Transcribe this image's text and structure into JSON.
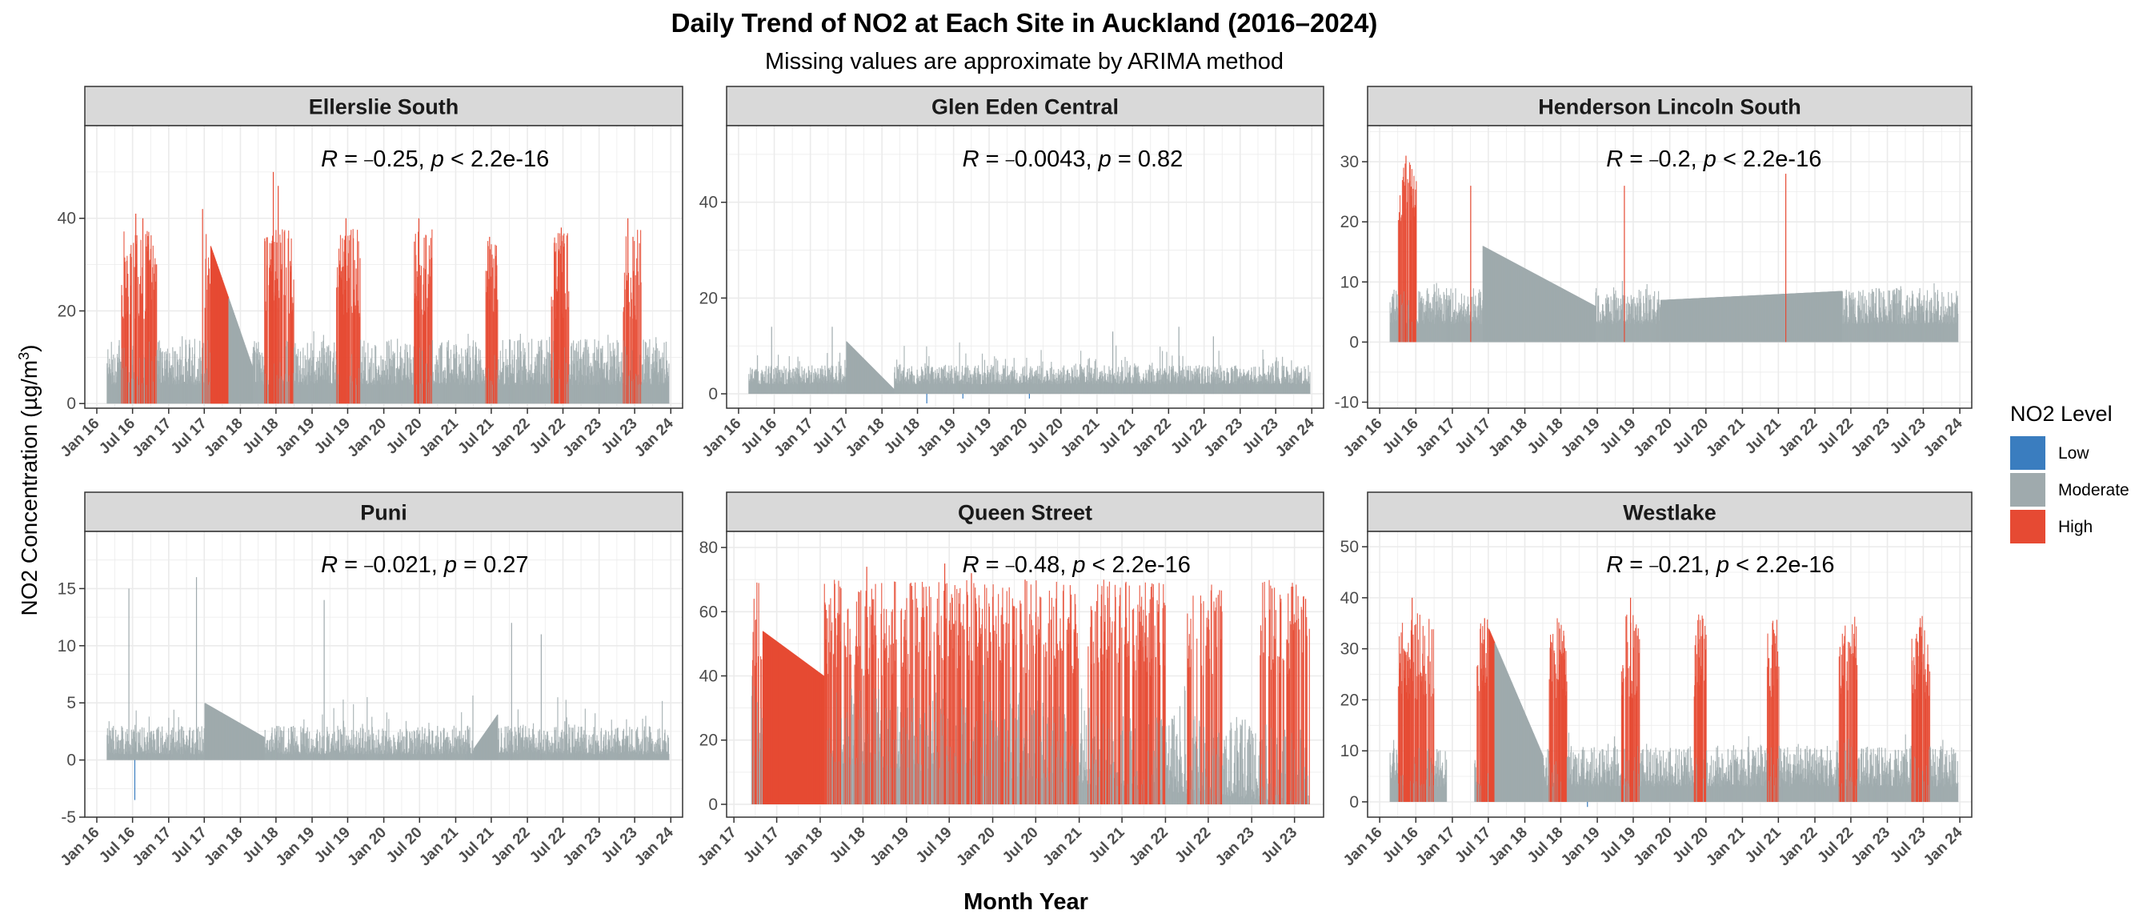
{
  "chart_data": {
    "type": "bar",
    "title": "Daily Trend of NO2 at Each Site in Auckland (2016–2024)",
    "subtitle": "Missing values are approximate by ARIMA method",
    "xlabel": "Month Year",
    "ylabel_text": "NO2 Concentration (µg/m",
    "ylabel_sup": "3",
    "ylabel_close": ")",
    "legend": {
      "title": "NO2 Level",
      "entries": [
        {
          "label": "Low",
          "color": "#3A7DBF"
        },
        {
          "label": "Moderate",
          "color": "#9FAAAD"
        },
        {
          "label": "High",
          "color": "#E64A33"
        }
      ]
    },
    "x_ticks_2016": [
      "Jan 16",
      "Jul 16",
      "Jan 17",
      "Jul 17",
      "Jan 18",
      "Jul 18",
      "Jan 19",
      "Jul 19",
      "Jan 20",
      "Jul 20",
      "Jan 21",
      "Jul 21",
      "Jan 22",
      "Jul 22",
      "Jan 23",
      "Jul 23",
      "Jan 24"
    ],
    "x_ticks_2017": [
      "Jan 17",
      "Jul 17",
      "Jan 18",
      "Jul 18",
      "Jan 19",
      "Jul 19",
      "Jan 20",
      "Jul 20",
      "Jan 21",
      "Jul 21",
      "Jan 22",
      "Jul 22",
      "Jan 23",
      "Jul 23"
    ],
    "panels": [
      {
        "site": "Ellerslie South",
        "annotation": {
          "R": "0.25",
          "p_op": "<",
          "p": "2.2e-16"
        },
        "x_range": [
          "2015-11",
          "2024-03"
        ],
        "x_tick_set": "2016",
        "ylim": [
          -1,
          60
        ],
        "y_ticks": [
          0,
          20,
          40
        ],
        "base": 4,
        "amp": 10,
        "spike": 3,
        "high_windows": [
          [
            "2016-05",
            "2016-10"
          ],
          [
            "2017-07",
            "2017-10"
          ],
          [
            "2018-05",
            "2018-09"
          ],
          [
            "2019-05",
            "2019-08"
          ],
          [
            "2020-06",
            "2020-08"
          ],
          [
            "2021-06",
            "2021-07"
          ],
          [
            "2022-05",
            "2022-07"
          ],
          [
            "2023-05",
            "2023-07"
          ]
        ],
        "high_min": 18,
        "high_max": 38,
        "peaks": [
          [
            "2016-07-15",
            41
          ],
          [
            "2016-08-20",
            40
          ],
          [
            "2017-06-20",
            42
          ],
          [
            "2018-06-15",
            50
          ],
          [
            "2018-07-10",
            47
          ],
          [
            "2019-06-20",
            40
          ],
          [
            "2020-06-25",
            40
          ],
          [
            "2021-06-20",
            36
          ],
          [
            "2022-06-20",
            38
          ],
          [
            "2023-05-25",
            40
          ],
          [
            "2023-06-20",
            36
          ]
        ],
        "interp": [
          [
            [
              "2017-08-01",
              34
            ],
            [
              "2018-03-01",
              8
            ]
          ]
        ],
        "gaps": [],
        "low_dips": []
      },
      {
        "site": "Glen Eden Central",
        "annotation": {
          "R": "0.0043",
          "p_op": "=",
          "p": "0.82"
        },
        "x_range": [
          "2015-11",
          "2024-03"
        ],
        "x_tick_set": "2016",
        "ylim": [
          -3,
          56
        ],
        "y_ticks": [
          0,
          20,
          40
        ],
        "base": 2,
        "amp": 4,
        "spike": 5,
        "high_windows": [],
        "peaks": [
          [
            "2016-06-15",
            14
          ],
          [
            "2017-04-20",
            14
          ],
          [
            "2021-03-20",
            13
          ],
          [
            "2022-02-20",
            14
          ],
          [
            "2022-08-15",
            12
          ]
        ],
        "interp": [
          [
            [
              "2017-07-01",
              11
            ],
            [
              "2018-03-01",
              1
            ]
          ]
        ],
        "gaps": [],
        "low_dips": [
          [
            "2018-08-15",
            -2
          ],
          [
            "2019-02-15",
            -1
          ],
          [
            "2020-01-20",
            -1
          ]
        ]
      },
      {
        "site": "Henderson Lincoln South",
        "annotation": {
          "R": "0.2",
          "p_op": "<",
          "p": "2.2e-16"
        },
        "x_range": [
          "2015-11",
          "2024-03"
        ],
        "x_tick_set": "2016",
        "ylim": [
          -11,
          36
        ],
        "y_ticks": [
          -10,
          0,
          10,
          20,
          30
        ],
        "base": 3,
        "amp": 6,
        "spike": 4,
        "high_windows": [
          [
            "2016-04",
            "2016-06"
          ]
        ],
        "high_min": 20,
        "high_max": 30,
        "peaks": [
          [
            "2016-05-10",
            31
          ],
          [
            "2017-04-01",
            26
          ],
          [
            "2019-05-15",
            26
          ],
          [
            "2021-08-05",
            28
          ]
        ],
        "interp": [
          [
            [
              "2017-06-01",
              16
            ],
            [
              "2018-12-20",
              6
            ]
          ],
          [
            [
              "2019-11-15",
              7
            ],
            [
              "2022-05-15",
              8.5
            ]
          ]
        ],
        "gaps": [],
        "low_dips": []
      },
      {
        "site": "Puni",
        "annotation": {
          "R": "0.021",
          "p_op": "=",
          "p": "0.27"
        },
        "x_range": [
          "2015-11",
          "2024-03"
        ],
        "x_tick_set": "2016",
        "ylim": [
          -5,
          20
        ],
        "y_ticks": [
          -5,
          0,
          5,
          10,
          15
        ],
        "base": 0.5,
        "amp": 2.5,
        "spike": 3,
        "high_windows": [],
        "peaks": [
          [
            "2016-06-10",
            15
          ],
          [
            "2017-05-20",
            16
          ],
          [
            "2019-03-01",
            14
          ],
          [
            "2021-10-10",
            12
          ],
          [
            "2022-03-10",
            11
          ]
        ],
        "interp": [
          [
            [
              "2017-07-01",
              5
            ],
            [
              "2018-05-01",
              2
            ]
          ],
          [
            [
              "2021-04-01",
              1
            ],
            [
              "2021-08-01",
              4
            ]
          ]
        ],
        "gaps": [],
        "low_dips": [
          [
            "2016-07-10",
            -3.5
          ]
        ]
      },
      {
        "site": "Queen Street",
        "annotation": {
          "R": "0.48",
          "p_op": "<",
          "p": "2.2e-16"
        },
        "x_range": [
          "2016-12",
          "2023-11"
        ],
        "x_tick_set": "2017",
        "ylim": [
          -4,
          85
        ],
        "y_ticks": [
          0,
          20,
          40,
          60,
          80
        ],
        "start": "2017-03-15",
        "end": "2023-09-01",
        "base": 15,
        "amp": 25,
        "spike": 15,
        "trend": -15,
        "high_windows": [
          [
            "2017-03",
            "2020-12"
          ],
          [
            "2021-02",
            "2021-12"
          ],
          [
            "2022-04",
            "2022-08"
          ],
          [
            "2023-02",
            "2023-09"
          ]
        ],
        "high_min": 40,
        "high_max": 70,
        "high_density": 0.55,
        "peaks": [
          [
            "2018-07-15",
            74
          ],
          [
            "2019-06-10",
            75
          ],
          [
            "2019-10-01",
            72
          ],
          [
            "2020-05-15",
            70
          ],
          [
            "2023-08-15",
            64
          ]
        ],
        "interp": [
          [
            [
              "2017-05-01",
              54
            ],
            [
              "2018-01-15",
              40
            ]
          ]
        ],
        "gaps": [],
        "low_dips": []
      },
      {
        "site": "Westlake",
        "annotation": {
          "R": "0.21",
          "p_op": "<",
          "p": "2.2e-16"
        },
        "x_range": [
          "2015-11",
          "2024-03"
        ],
        "x_tick_set": "2016",
        "ylim": [
          -3,
          53
        ],
        "y_ticks": [
          0,
          10,
          20,
          30,
          40,
          50
        ],
        "base": 3,
        "amp": 8,
        "spike": 3,
        "high_windows": [
          [
            "2016-04",
            "2016-09"
          ],
          [
            "2017-05",
            "2017-07"
          ],
          [
            "2018-05",
            "2018-07"
          ],
          [
            "2019-05",
            "2019-07"
          ],
          [
            "2020-05",
            "2020-06"
          ],
          [
            "2021-05",
            "2021-06"
          ],
          [
            "2022-05",
            "2022-07"
          ],
          [
            "2023-05",
            "2023-07"
          ]
        ],
        "high_min": 20,
        "high_max": 37,
        "peaks": [
          [
            "2016-06-10",
            40
          ],
          [
            "2017-06-10",
            36
          ],
          [
            "2019-06-15",
            40
          ],
          [
            "2023-06-10",
            34
          ]
        ],
        "interp": [
          [
            [
              "2017-07-01",
              34
            ],
            [
              "2018-04-01",
              9
            ]
          ]
        ],
        "gaps": [
          [
            "2016-12-01",
            "2017-04-20"
          ]
        ],
        "low_dips": [
          [
            "2018-11-10",
            -1
          ]
        ]
      }
    ]
  }
}
